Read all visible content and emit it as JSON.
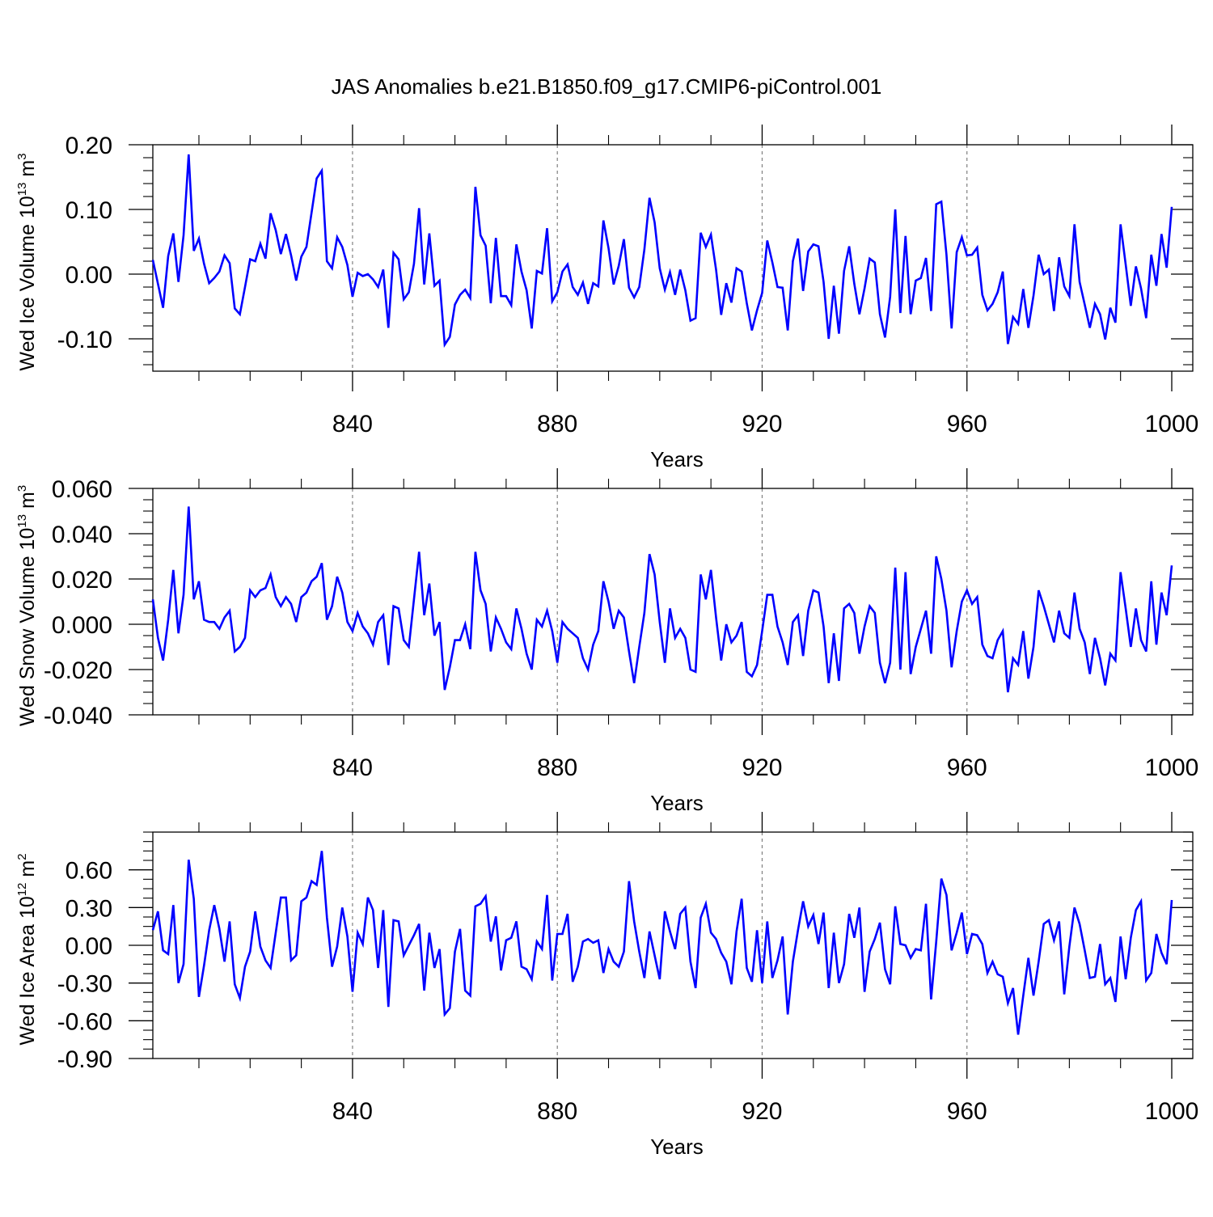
{
  "figure_title": "JAS Anomalies b.e21.B1850.f09_g17.CMIP6-piControl.001",
  "colors": {
    "line": "#0000ff",
    "axis": "#000000",
    "grid": "#808080"
  },
  "chart_data": [
    {
      "type": "line",
      "ylabel": "Wed Ice Volume 10",
      "ylabel_exp": "13",
      "ylabel_unit": " m",
      "ylabel_unit_exp": "3",
      "xlabel": "Years",
      "xlim": [
        801,
        1000
      ],
      "ylim": [
        -0.15,
        0.2
      ],
      "xticks": [
        840,
        880,
        920,
        960,
        1000
      ],
      "xtick_labels": [
        "840",
        "880",
        "920",
        "960",
        "1000"
      ],
      "yticks": [
        0.2,
        0.1,
        0.0,
        -0.1
      ],
      "ytick_labels": [
        "0.20",
        "0.10",
        "0.00",
        "-0.10"
      ],
      "yminor_step": 0.02,
      "grid_x": true,
      "series": [
        {
          "name": "Wed Ice Volume",
          "x_start": 801,
          "values": [
            0.022,
            -0.015,
            -0.052,
            0.028,
            0.063,
            -0.012,
            0.06,
            0.185,
            0.036,
            0.055,
            0.016,
            -0.014,
            -0.006,
            0.004,
            0.029,
            0.017,
            -0.053,
            -0.062,
            -0.02,
            0.023,
            0.02,
            0.047,
            0.024,
            0.094,
            0.068,
            0.031,
            0.062,
            0.029,
            -0.01,
            0.027,
            0.042,
            0.095,
            0.148,
            0.16,
            0.02,
            0.009,
            0.057,
            0.042,
            0.014,
            -0.035,
            0.002,
            -0.003,
            0.0,
            -0.008,
            -0.02,
            0.007,
            -0.083,
            0.033,
            0.023,
            -0.039,
            -0.028,
            0.016,
            0.102,
            -0.016,
            0.063,
            -0.018,
            -0.01,
            -0.109,
            -0.097,
            -0.047,
            -0.032,
            -0.024,
            -0.037,
            0.135,
            0.06,
            0.044,
            -0.045,
            0.056,
            -0.034,
            -0.034,
            -0.048,
            0.046,
            0.004,
            -0.025,
            -0.084,
            0.005,
            0.001,
            0.071,
            -0.042,
            -0.028,
            0.004,
            0.015,
            -0.02,
            -0.032,
            -0.013,
            -0.046,
            -0.014,
            -0.019,
            0.083,
            0.04,
            -0.016,
            0.013,
            0.054,
            -0.021,
            -0.036,
            -0.02,
            0.038,
            0.118,
            0.08,
            0.009,
            -0.024,
            0.003,
            -0.032,
            0.007,
            -0.025,
            -0.072,
            -0.068,
            0.064,
            0.042,
            0.061,
            0.007,
            -0.063,
            -0.014,
            -0.044,
            0.009,
            0.004,
            -0.045,
            -0.087,
            -0.056,
            -0.029,
            0.052,
            0.018,
            -0.02,
            -0.021,
            -0.087,
            0.02,
            0.055,
            -0.026,
            0.035,
            0.046,
            0.043,
            -0.012,
            -0.1,
            -0.018,
            -0.092,
            0.005,
            0.043,
            -0.015,
            -0.062,
            -0.022,
            0.024,
            0.018,
            -0.062,
            -0.098,
            -0.035,
            0.1,
            -0.06,
            0.059,
            -0.062,
            -0.01,
            -0.006,
            0.025,
            -0.057,
            0.108,
            0.112,
            0.03,
            -0.084,
            0.034,
            0.057,
            0.029,
            0.03,
            0.041,
            -0.032,
            -0.056,
            -0.046,
            -0.028,
            0.004,
            -0.108,
            -0.066,
            -0.077,
            -0.023,
            -0.083,
            -0.033,
            0.03,
            0.0,
            0.007,
            -0.057,
            0.026,
            -0.019,
            -0.034,
            0.077,
            -0.012,
            -0.047,
            -0.083,
            -0.046,
            -0.062,
            -0.101,
            -0.052,
            -0.075,
            0.077,
            0.015,
            -0.049,
            0.012,
            -0.022,
            -0.068,
            0.03,
            -0.018,
            0.062,
            0.01,
            0.104
          ]
        }
      ]
    },
    {
      "type": "line",
      "ylabel": "Wed Snow Volume 10",
      "ylabel_exp": "13",
      "ylabel_unit": " m",
      "ylabel_unit_exp": "3",
      "xlabel": "Years",
      "xlim": [
        801,
        1000
      ],
      "ylim": [
        -0.04,
        0.06
      ],
      "xticks": [
        840,
        880,
        920,
        960,
        1000
      ],
      "xtick_labels": [
        "840",
        "880",
        "920",
        "960",
        "1000"
      ],
      "yticks": [
        0.06,
        0.04,
        0.02,
        0.0,
        -0.02,
        -0.04
      ],
      "ytick_labels": [
        "0.060",
        "0.040",
        "0.020",
        "0.000",
        "-0.020",
        "-0.040"
      ],
      "yminor_step": 0.005,
      "grid_x": true,
      "series": [
        {
          "name": "Wed Snow Volume",
          "x_start": 801,
          "values": [
            0.011,
            -0.006,
            -0.016,
            0.002,
            0.024,
            -0.004,
            0.013,
            0.052,
            0.011,
            0.019,
            0.002,
            0.001,
            0.001,
            -0.002,
            0.003,
            0.006,
            -0.012,
            -0.01,
            -0.006,
            0.015,
            0.012,
            0.015,
            0.016,
            0.022,
            0.012,
            0.008,
            0.012,
            0.009,
            0.001,
            0.012,
            0.014,
            0.019,
            0.021,
            0.027,
            0.002,
            0.008,
            0.021,
            0.014,
            0.001,
            -0.003,
            0.005,
            -0.001,
            -0.004,
            -0.009,
            0.001,
            0.004,
            -0.018,
            0.008,
            0.007,
            -0.007,
            -0.01,
            0.011,
            0.032,
            0.004,
            0.018,
            -0.005,
            0.001,
            -0.029,
            -0.019,
            -0.007,
            -0.007,
            0.0,
            -0.011,
            0.032,
            0.015,
            0.009,
            -0.012,
            0.003,
            -0.002,
            -0.008,
            -0.011,
            0.007,
            -0.002,
            -0.013,
            -0.02,
            0.002,
            -0.001,
            0.006,
            -0.003,
            -0.017,
            0.001,
            -0.002,
            -0.004,
            -0.006,
            -0.015,
            -0.02,
            -0.009,
            -0.003,
            0.019,
            0.01,
            -0.002,
            0.006,
            0.003,
            -0.012,
            -0.026,
            -0.01,
            0.005,
            0.031,
            0.022,
            0.001,
            -0.017,
            0.007,
            -0.006,
            -0.002,
            -0.006,
            -0.02,
            -0.021,
            0.022,
            0.011,
            0.024,
            0.003,
            -0.016,
            0.0,
            -0.008,
            -0.005,
            0.001,
            -0.021,
            -0.023,
            -0.018,
            -0.003,
            0.013,
            0.013,
            -0.001,
            -0.008,
            -0.018,
            0.001,
            0.004,
            -0.014,
            0.006,
            0.015,
            0.014,
            -0.001,
            -0.026,
            -0.004,
            -0.025,
            0.007,
            0.009,
            0.005,
            -0.013,
            -0.001,
            0.008,
            0.005,
            -0.017,
            -0.026,
            -0.017,
            0.025,
            -0.02,
            0.023,
            -0.022,
            -0.01,
            -0.002,
            0.006,
            -0.013,
            0.03,
            0.02,
            0.006,
            -0.019,
            -0.003,
            0.01,
            0.015,
            0.009,
            0.012,
            -0.009,
            -0.014,
            -0.015,
            -0.007,
            -0.003,
            -0.03,
            -0.015,
            -0.018,
            -0.003,
            -0.024,
            -0.01,
            0.015,
            0.008,
            0.0,
            -0.008,
            0.006,
            -0.004,
            -0.006,
            0.014,
            -0.002,
            -0.008,
            -0.022,
            -0.006,
            -0.015,
            -0.027,
            -0.013,
            -0.016,
            0.023,
            0.007,
            -0.01,
            0.007,
            -0.007,
            -0.012,
            0.019,
            -0.009,
            0.014,
            0.004,
            0.026
          ]
        }
      ]
    },
    {
      "type": "line",
      "ylabel": "Wed Ice Area 10",
      "ylabel_exp": "12",
      "ylabel_unit": " m",
      "ylabel_unit_exp": "2",
      "xlabel": "Years",
      "xlim": [
        801,
        1000
      ],
      "ylim": [
        -0.9,
        0.9
      ],
      "xticks": [
        840,
        880,
        920,
        960,
        1000
      ],
      "xtick_labels": [
        "840",
        "880",
        "920",
        "960",
        "1000"
      ],
      "yticks": [
        0.6,
        0.3,
        0.0,
        -0.3,
        -0.6,
        -0.9
      ],
      "ytick_labels": [
        "0.60",
        "0.30",
        "0.00",
        "-0.30",
        "-0.60",
        "-0.90"
      ],
      "yminor_step": 0.075,
      "grid_x": true,
      "series": [
        {
          "name": "Wed Ice Area",
          "x_start": 801,
          "values": [
            0.12,
            0.27,
            -0.04,
            -0.07,
            0.32,
            -0.3,
            -0.15,
            0.68,
            0.37,
            -0.41,
            -0.16,
            0.12,
            0.32,
            0.13,
            -0.13,
            0.19,
            -0.31,
            -0.42,
            -0.17,
            -0.05,
            0.27,
            -0.01,
            -0.12,
            -0.18,
            0.1,
            0.38,
            0.38,
            -0.12,
            -0.08,
            0.35,
            0.38,
            0.51,
            0.48,
            0.75,
            0.22,
            -0.17,
            -0.01,
            0.3,
            0.07,
            -0.37,
            0.1,
            0.01,
            0.38,
            0.28,
            -0.18,
            0.28,
            -0.49,
            0.2,
            0.19,
            -0.08,
            0.0,
            0.08,
            0.17,
            -0.36,
            0.1,
            -0.18,
            -0.03,
            -0.55,
            -0.5,
            -0.05,
            0.13,
            -0.36,
            -0.4,
            0.31,
            0.33,
            0.39,
            0.03,
            0.23,
            -0.2,
            0.04,
            0.06,
            0.19,
            -0.17,
            -0.19,
            -0.27,
            0.03,
            -0.03,
            0.4,
            -0.28,
            0.09,
            0.09,
            0.25,
            -0.29,
            -0.17,
            0.03,
            0.05,
            0.02,
            0.04,
            -0.22,
            -0.03,
            -0.13,
            -0.17,
            -0.05,
            0.51,
            0.19,
            -0.05,
            -0.26,
            0.11,
            -0.08,
            -0.27,
            0.27,
            0.11,
            -0.03,
            0.25,
            0.3,
            -0.13,
            -0.34,
            0.22,
            0.33,
            0.1,
            0.05,
            -0.06,
            -0.13,
            -0.31,
            0.11,
            0.37,
            -0.18,
            -0.29,
            0.12,
            -0.3,
            0.19,
            -0.26,
            -0.12,
            0.07,
            -0.55,
            -0.13,
            0.12,
            0.35,
            0.15,
            0.24,
            0.01,
            0.26,
            -0.34,
            0.1,
            -0.3,
            -0.15,
            0.25,
            0.06,
            0.3,
            -0.37,
            -0.05,
            0.05,
            0.18,
            -0.19,
            -0.31,
            0.31,
            0.01,
            0.0,
            -0.1,
            -0.03,
            -0.04,
            0.33,
            -0.43,
            0.03,
            0.53,
            0.4,
            -0.04,
            0.1,
            0.26,
            -0.07,
            0.09,
            0.08,
            0.01,
            -0.22,
            -0.13,
            -0.23,
            -0.25,
            -0.46,
            -0.34,
            -0.71,
            -0.4,
            -0.1,
            -0.4,
            -0.13,
            0.17,
            0.2,
            0.04,
            0.19,
            -0.39,
            -0.01,
            0.3,
            0.17,
            -0.04,
            -0.26,
            -0.25,
            0.01,
            -0.31,
            -0.26,
            -0.45,
            0.07,
            -0.27,
            0.06,
            0.28,
            0.35,
            -0.28,
            -0.22,
            0.09,
            -0.06,
            -0.15,
            0.36
          ]
        }
      ]
    }
  ]
}
